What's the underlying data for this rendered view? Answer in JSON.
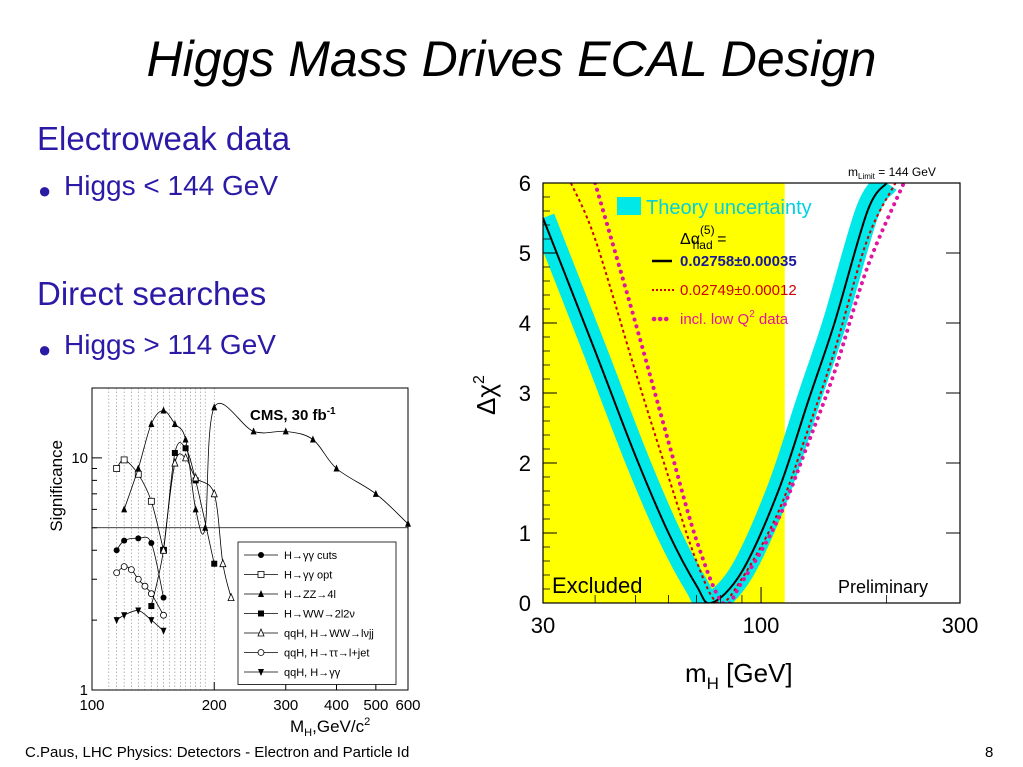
{
  "slide": {
    "title": "Higgs Mass Drives ECAL Design",
    "sections": [
      {
        "heading": "Electroweak data",
        "bullet": "Higgs < 144 GeV"
      },
      {
        "heading": "Direct searches",
        "bullet": "Higgs > 114 GeV"
      }
    ],
    "footer_left": "C.Paus, LHC Physics:  Detectors - Electron and Particle Id",
    "page_number": "8"
  },
  "chart_data": [
    {
      "type": "line",
      "label": "CMS, 30 fb",
      "label_sup": "-1",
      "ylabel": "Significance",
      "xlabel": "M",
      "xlabel_sub": "H",
      "xlabel_rest": ",GeV/c",
      "xlabel_sup": "2",
      "xscale": "log",
      "yscale": "log",
      "xlim": [
        100,
        600
      ],
      "ylim": [
        1,
        20
      ],
      "xticks": [
        100,
        200,
        300,
        400,
        500,
        600
      ],
      "yticks": [
        1,
        10
      ],
      "reference_line": 5,
      "series": [
        {
          "name": "H→γγ cuts",
          "marker": "filled-circle",
          "x": [
            115,
            120,
            130,
            140,
            150
          ],
          "y": [
            4.0,
            4.4,
            4.5,
            4.3,
            2.5
          ]
        },
        {
          "name": "H→γγ opt",
          "marker": "open-square",
          "x": [
            115,
            120,
            130,
            140,
            150
          ],
          "y": [
            9.0,
            9.8,
            8.5,
            6.5,
            4.0
          ]
        },
        {
          "name": "H→ZZ→4l",
          "marker": "filled-triangle",
          "x": [
            120,
            130,
            140,
            150,
            160,
            170,
            180,
            190,
            200,
            250,
            300,
            350,
            400,
            500,
            600
          ],
          "y": [
            6.0,
            9.0,
            14.0,
            16.0,
            14.0,
            12.0,
            6.0,
            5.0,
            16.5,
            13.0,
            13.0,
            12.0,
            9.0,
            7.0,
            5.2
          ]
        },
        {
          "name": "H→WW→2l2ν",
          "marker": "filled-square",
          "x": [
            140,
            150,
            160,
            170,
            180,
            200
          ],
          "y": [
            2.3,
            4.0,
            10.5,
            11.0,
            8.0,
            3.5
          ]
        },
        {
          "name": "qqH, H→WW→lνjj",
          "marker": "open-triangle",
          "x": [
            150,
            160,
            170,
            180,
            200,
            210,
            220
          ],
          "y": [
            4.0,
            9.5,
            10.0,
            8.2,
            7.0,
            3.5,
            2.5
          ]
        },
        {
          "name": "qqH, H→ττ→l+jet",
          "marker": "open-circle",
          "x": [
            115,
            120,
            125,
            130,
            135,
            140,
            150
          ],
          "y": [
            3.2,
            3.4,
            3.3,
            3.0,
            2.8,
            2.6,
            2.1
          ]
        },
        {
          "name": "qqH, H→γγ",
          "marker": "filled-down-triangle",
          "x": [
            115,
            120,
            130,
            140,
            150
          ],
          "y": [
            2.0,
            2.1,
            2.2,
            2.0,
            1.8
          ]
        }
      ]
    },
    {
      "type": "line",
      "xlabel": "m",
      "xlabel_sub": "H",
      "xlabel_rest": "[GeV]",
      "ylabel": "Δχ",
      "ylabel_sup": "2",
      "xscale": "log",
      "xlim": [
        30,
        300
      ],
      "ylim": [
        0,
        6
      ],
      "xticks": [
        30,
        100,
        300
      ],
      "yticks": [
        0,
        1,
        2,
        3,
        4,
        5,
        6
      ],
      "excluded_region": [
        30,
        114
      ],
      "excluded_label": "Excluded",
      "preliminary_label": "Preliminary",
      "mlimit_label_m": "m",
      "mlimit_label_sub": "Limit",
      "mlimit_label_rest": " = 144 GeV",
      "legend_theory": "Theory uncertainty",
      "legend_alpha_symbol": "Δα",
      "legend_alpha_sup": "(5)",
      "legend_alpha_sub": "had",
      "legend_alpha_eq": " =",
      "colors": {
        "excluded": "#ffff00",
        "band": "#00e8e8",
        "solid": "#000000",
        "dotted": "#cc0000",
        "lowq2": "#e0169e",
        "value_blue": "#1a1a99",
        "value_red": "#cc0000"
      },
      "series": [
        {
          "name": "0.02758±0.00035",
          "style": "solid",
          "min_x": 76,
          "x": [
            30,
            40,
            50,
            60,
            70,
            76,
            90,
            110,
            130,
            150,
            180,
            200
          ],
          "y": [
            5.5,
            3.6,
            2.1,
            1.0,
            0.25,
            0.0,
            0.45,
            1.6,
            2.9,
            4.0,
            5.6,
            6.0
          ]
        },
        {
          "name": "0.02749±0.00012",
          "style": "dotted",
          "min_x": 79,
          "x": [
            35,
            40,
            50,
            60,
            70,
            79,
            90,
            110,
            130,
            150,
            180,
            210
          ],
          "y": [
            6.0,
            5.2,
            3.3,
            1.8,
            0.6,
            0.0,
            0.35,
            1.3,
            2.5,
            3.6,
            5.2,
            6.0
          ]
        },
        {
          "name": "incl. low Q",
          "name_sup": "2",
          "name_rest": " data",
          "style": "dots",
          "min_x": 81,
          "x": [
            40,
            50,
            60,
            70,
            81,
            90,
            110,
            130,
            150,
            180,
            220
          ],
          "y": [
            6.0,
            4.0,
            2.3,
            0.9,
            0.0,
            0.3,
            1.2,
            2.3,
            3.3,
            4.8,
            6.0
          ]
        }
      ]
    }
  ]
}
